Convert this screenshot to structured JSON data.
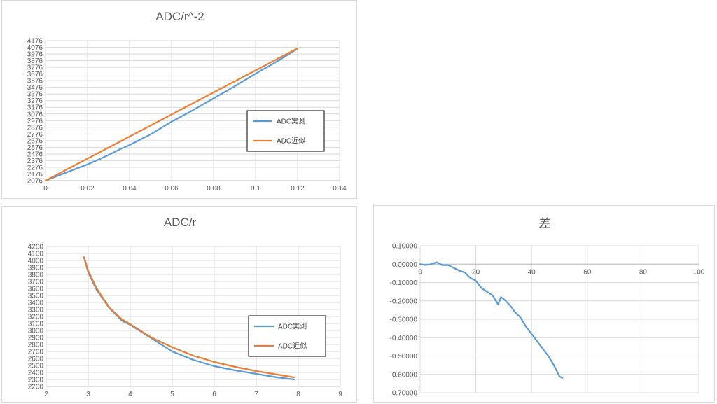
{
  "colors": {
    "actual": "#5B9BD5",
    "approx": "#ED7D31",
    "grid": "#d9d9d9",
    "text": "#595959"
  },
  "chart_data": [
    {
      "type": "line",
      "title": "ADC/r^-2",
      "xlabel": "",
      "ylabel": "",
      "xlim": [
        0,
        0.14
      ],
      "ylim": [
        2076,
        4176
      ],
      "x_ticks": [
        "0",
        "0.02",
        "0.04",
        "0.06",
        "0.08",
        "0.1",
        "0.12",
        "0.14"
      ],
      "y_ticks": [
        "2076",
        "2176",
        "2276",
        "2376",
        "2476",
        "2576",
        "2676",
        "2776",
        "2876",
        "2976",
        "3076",
        "3176",
        "3276",
        "3376",
        "3476",
        "3576",
        "3676",
        "3776",
        "3876",
        "3976",
        "4076",
        "4176"
      ],
      "grid": true,
      "legend_position": "right",
      "series": [
        {
          "name": "ADC実測",
          "color": "#5B9BD5",
          "x": [
            0,
            0.01,
            0.02,
            0.03,
            0.035,
            0.04,
            0.05,
            0.06,
            0.07,
            0.08,
            0.09,
            0.1,
            0.11,
            0.12
          ],
          "y": [
            2076,
            2200,
            2320,
            2460,
            2540,
            2610,
            2770,
            2960,
            3130,
            3310,
            3490,
            3680,
            3860,
            4056
          ]
        },
        {
          "name": "ADC近似",
          "color": "#ED7D31",
          "x": [
            0,
            0.12
          ],
          "y": [
            2076,
            4060
          ]
        }
      ]
    },
    {
      "type": "line",
      "title": "ADC/r",
      "xlabel": "",
      "ylabel": "",
      "xlim": [
        2,
        9
      ],
      "ylim": [
        2200,
        4200
      ],
      "x_ticks": [
        "2",
        "3",
        "4",
        "5",
        "6",
        "7",
        "8",
        "9"
      ],
      "y_ticks": [
        "2200",
        "2300",
        "2400",
        "2500",
        "2600",
        "2700",
        "2800",
        "2900",
        "3000",
        "3100",
        "3200",
        "3300",
        "3400",
        "3500",
        "3600",
        "3700",
        "3800",
        "3900",
        "4000",
        "4100",
        "4200"
      ],
      "grid": true,
      "legend_position": "right",
      "series": [
        {
          "name": "ADC実測",
          "color": "#5B9BD5",
          "x": [
            2.9,
            3.0,
            3.2,
            3.5,
            3.8,
            4.0,
            4.5,
            5.0,
            5.5,
            6.0,
            6.5,
            7.0,
            7.5,
            7.9
          ],
          "y": [
            4040,
            3830,
            3580,
            3320,
            3140,
            3080,
            2890,
            2700,
            2580,
            2490,
            2430,
            2380,
            2330,
            2300
          ]
        },
        {
          "name": "ADC近似",
          "color": "#ED7D31",
          "x": [
            2.9,
            3.0,
            3.2,
            3.5,
            3.8,
            4.0,
            4.5,
            5.0,
            5.5,
            6.0,
            6.5,
            7.0,
            7.5,
            7.9
          ],
          "y": [
            4050,
            3850,
            3600,
            3330,
            3160,
            3090,
            2900,
            2760,
            2640,
            2550,
            2480,
            2420,
            2370,
            2330
          ]
        }
      ]
    },
    {
      "type": "line",
      "title": "差",
      "xlabel": "",
      "ylabel": "",
      "xlim": [
        0,
        100
      ],
      "ylim": [
        -0.7,
        0.1
      ],
      "x_ticks": [
        "0",
        "20",
        "40",
        "60",
        "80",
        "100"
      ],
      "y_ticks": [
        "0.10000",
        "0.00000",
        "-0.10000",
        "-0.20000",
        "-0.30000",
        "-0.40000",
        "-0.50000",
        "-0.60000",
        "-0.70000"
      ],
      "grid": true,
      "series": [
        {
          "name": "",
          "color": "#5B9BD5",
          "x": [
            0,
            2,
            4,
            6,
            8,
            10,
            12,
            14,
            16,
            18,
            20,
            22,
            24,
            26,
            28,
            29,
            30,
            32,
            34,
            36,
            38,
            40,
            42,
            44,
            46,
            48,
            50,
            51
          ],
          "y": [
            0,
            -0.005,
            0,
            0.01,
            -0.005,
            -0.005,
            -0.02,
            -0.035,
            -0.045,
            -0.075,
            -0.09,
            -0.13,
            -0.15,
            -0.17,
            -0.22,
            -0.18,
            -0.19,
            -0.22,
            -0.26,
            -0.29,
            -0.34,
            -0.38,
            -0.42,
            -0.46,
            -0.5,
            -0.55,
            -0.61,
            -0.62
          ]
        }
      ]
    }
  ]
}
